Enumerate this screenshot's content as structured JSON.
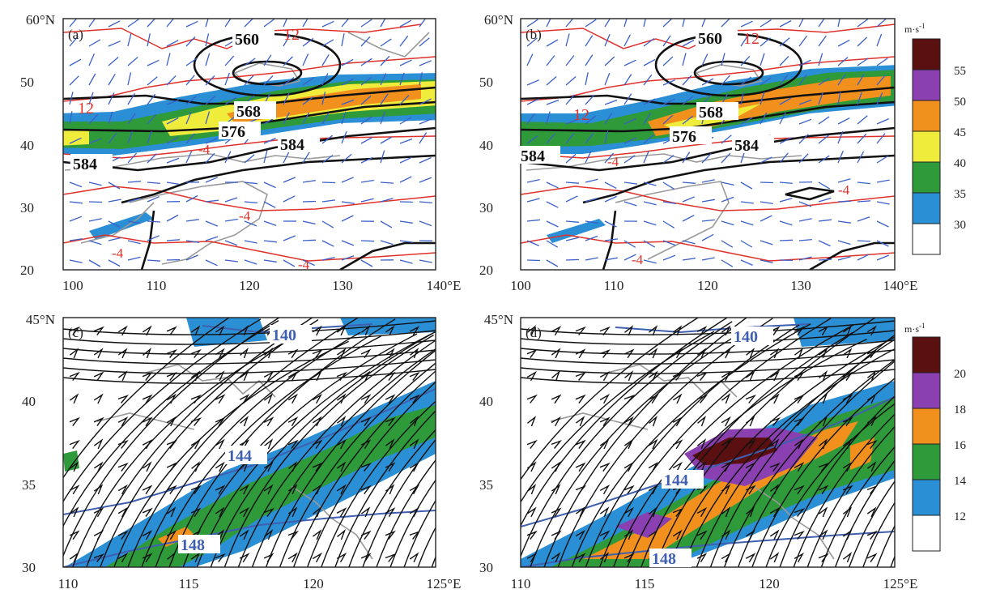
{
  "colors": {
    "c30": "#2b8fd6",
    "c35": "#2e9a3a",
    "c40": "#f0ec3c",
    "c45": "#f2901e",
    "c50": "#8a40b0",
    "c55": "#5a1010",
    "c12": "#2b8fd6",
    "c14": "#2e9a3a",
    "c16": "#f2901e",
    "c18": "#8a40b0",
    "c20": "#5a1010",
    "geopotential": "#111111",
    "temperature": "#e0302a",
    "wind_barb": "#3a5fc8",
    "boundary": "#999999",
    "height_lower": "#3f5fb0",
    "streamline": "#111111"
  },
  "panels": [
    {
      "id": "a",
      "label": "(a)",
      "lon_ticks": [
        "100",
        "110",
        "120",
        "130",
        "140°E"
      ],
      "lat_ticks": [
        "20",
        "30",
        "40",
        "50",
        "60°N"
      ],
      "contour_labels": [
        "560",
        "568",
        "576",
        "584",
        "584"
      ],
      "temp_labels": [
        "12",
        "12",
        "-4",
        "-4",
        "-4",
        "-4"
      ]
    },
    {
      "id": "b",
      "label": "(b)",
      "lon_ticks": [
        "100",
        "110",
        "120",
        "130",
        "140°E"
      ],
      "lat_ticks": [
        "20",
        "30",
        "40",
        "50",
        "60°N"
      ],
      "contour_labels": [
        "560",
        "568",
        "576",
        "584",
        "584"
      ],
      "temp_labels": [
        "12",
        "12",
        "-4",
        "-4",
        "-4"
      ]
    },
    {
      "id": "c",
      "label": "(c)",
      "lon_ticks": [
        "110",
        "115",
        "120",
        "125°E"
      ],
      "lat_ticks": [
        "30",
        "35",
        "40",
        "45°N"
      ],
      "contour_labels": [
        "140",
        "144",
        "148"
      ]
    },
    {
      "id": "d",
      "label": "(d)",
      "lon_ticks": [
        "110",
        "115",
        "120",
        "125°E"
      ],
      "lat_ticks": [
        "30",
        "35",
        "40",
        "45°N"
      ],
      "contour_labels": [
        "140",
        "144",
        "148"
      ]
    }
  ],
  "colorbars": [
    {
      "id": "top",
      "unit": "m·s",
      "unit_exp": "-1",
      "ticks": [
        "55",
        "50",
        "45",
        "40",
        "35",
        "30"
      ]
    },
    {
      "id": "bottom",
      "unit": "m·s",
      "unit_exp": "-1",
      "ticks": [
        "20",
        "18",
        "16",
        "14",
        "12"
      ]
    }
  ]
}
